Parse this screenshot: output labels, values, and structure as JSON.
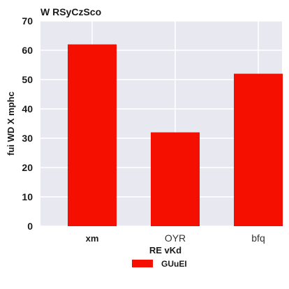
{
  "colors": {
    "plot_background": "#e8e8f1",
    "grid": "#ffffff",
    "bar": "#f40f00"
  },
  "chart_data": {
    "type": "bar",
    "title": "W RSyCzSco",
    "xlabel": "RE vKd",
    "ylabel": "fui WD X mphc",
    "categories": [
      "xm",
      "OYR",
      "bfq"
    ],
    "category_label_weight": [
      "bold",
      "normal",
      "normal"
    ],
    "series": [
      {
        "name": "GUuEI",
        "values": [
          62,
          32,
          52
        ]
      }
    ],
    "ylim": [
      0,
      70
    ],
    "yticks": [
      0,
      10,
      20,
      30,
      40,
      50,
      60,
      70
    ],
    "grid": true,
    "legend_position": "bottom-center"
  }
}
